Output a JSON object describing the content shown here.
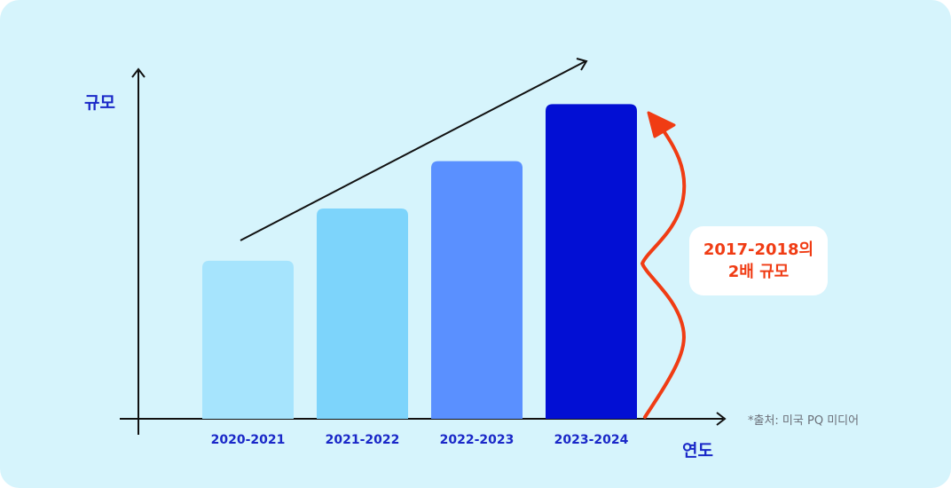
{
  "chart_data": {
    "type": "bar",
    "categories": [
      "2020-2021",
      "2021-2022",
      "2022-2023",
      "2023-2024"
    ],
    "values": [
      1.0,
      1.33,
      1.63,
      1.99
    ],
    "ylim": [
      0,
      2.2
    ],
    "xlabel": "연도",
    "ylabel": "규모",
    "bar_colors": [
      "#a6e4fd",
      "#7dd4fb",
      "#5a90ff",
      "#020fd4"
    ],
    "trend_arrow": true,
    "annotation": {
      "line1": "2017-2018의",
      "line2": "2배 규모"
    },
    "annotation_color": "#f03c14",
    "source": "*출처: 미국 PQ 미디어"
  },
  "colors": {
    "background": "#d6f4fc",
    "axis": "#111111",
    "label": "#1a28c8"
  }
}
